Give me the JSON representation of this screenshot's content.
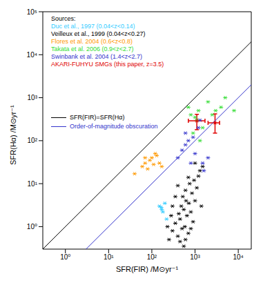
{
  "chart_data": {
    "type": "scatter",
    "log": true,
    "grid": false,
    "xlabel": "SFR(FIR) /M⊙yr⁻¹",
    "ylabel": "SFR(Hα) /M⊙yr⁻¹",
    "xlim": [
      0.3,
      20000
    ],
    "ylim": [
      0.3,
      100000
    ],
    "xticks": [
      {
        "value": 1,
        "label": "10⁰"
      },
      {
        "value": 10,
        "label": "10¹"
      },
      {
        "value": 100,
        "label": "10²"
      },
      {
        "value": 1000,
        "label": "10³"
      },
      {
        "value": 10000,
        "label": "10⁴"
      }
    ],
    "yticks": [
      {
        "value": 1,
        "label": "10⁰"
      },
      {
        "value": 10,
        "label": "10¹"
      },
      {
        "value": 100,
        "label": "10²"
      },
      {
        "value": 1000,
        "label": "10³"
      },
      {
        "value": 10000,
        "label": "10⁴"
      },
      {
        "value": 100000,
        "label": "10⁵"
      }
    ],
    "legend": "upper left",
    "legend_title": "Sources:",
    "series": [
      {
        "name": "Duc et al., 1997 (0.04<z<0.14)",
        "color": "#33ccff",
        "marker": "asterisk",
        "x": [
          150,
          170,
          180,
          200,
          220,
          165
        ],
        "y": [
          3,
          2.5,
          2.2,
          3.5,
          1.5,
          2.8
        ]
      },
      {
        "name": "Veilleux et al., 1999 (0.04<z<0.27)",
        "color": "#000000",
        "marker": "asterisk",
        "x": [
          250,
          300,
          350,
          400,
          420,
          450,
          480,
          500,
          520,
          550,
          580,
          600,
          620,
          650,
          700,
          720,
          750,
          800,
          850,
          900,
          950,
          1000,
          1100,
          1200,
          1300,
          1400,
          1500,
          300,
          350,
          400,
          450,
          600,
          800,
          280,
          230,
          700,
          1000,
          550
        ],
        "y": [
          0.5,
          0.8,
          1.2,
          0.6,
          2,
          1.5,
          3,
          0.9,
          5,
          2.5,
          1,
          7,
          4,
          1.8,
          0.7,
          3.5,
          10,
          2.2,
          6,
          1.3,
          12,
          4,
          8,
          15,
          20,
          3,
          25,
          3,
          5,
          9,
          0.45,
          0.5,
          0.9,
          1.8,
          1,
          14,
          30,
          0.35
        ]
      },
      {
        "name": "Flores et al. 2004 (0.6<z<0.8)",
        "color": "#ff9900",
        "marker": "asterisk",
        "x": [
          40,
          60,
          70,
          80,
          90,
          100,
          110,
          120,
          130,
          150,
          170,
          70
        ],
        "y": [
          17,
          25,
          30,
          22,
          35,
          40,
          28,
          50,
          45,
          30,
          25,
          40
        ]
      },
      {
        "name": "Takata et al. 2006 (0.9<z<2.7)",
        "color": "#33dd33",
        "marker": "asterisk",
        "x": [
          700,
          800,
          1000,
          1100,
          1200,
          1500,
          2000,
          3000,
          4000,
          8000,
          900,
          1300,
          2500,
          5000
        ],
        "y": [
          600,
          400,
          350,
          300,
          500,
          200,
          800,
          500,
          600,
          500,
          150,
          100,
          400,
          1000
        ]
      },
      {
        "name": "Swinbank et al. 2004 (1.4<z<2.7)",
        "color": "#3333cc",
        "marker": "asterisk",
        "x": [
          400,
          500,
          600,
          700,
          800,
          1000,
          1200,
          1500,
          1600,
          2000,
          600,
          900,
          1300
        ],
        "y": [
          40,
          60,
          80,
          100,
          30,
          50,
          200,
          30,
          20,
          40,
          150,
          120,
          300
        ]
      },
      {
        "name": "AKARI-FUHYU SMGs (this paper, z=3.5)",
        "color": "#e00000",
        "marker": "asterisk",
        "x": [
          1100,
          2900
        ],
        "y": [
          290,
          260
        ],
        "x_err": [
          [
            400,
            600
          ],
          [
            900,
            800
          ]
        ],
        "y_err": [
          [
            110,
            120
          ],
          [
            110,
            160
          ]
        ]
      }
    ],
    "lines": [
      {
        "name": "SFR(FIR)=SFR(Hα)",
        "color": "#000000",
        "line_style": "solid",
        "x": [
          0.3,
          20000
        ],
        "y": [
          0.3,
          20000
        ]
      },
      {
        "name": "Order-of-magnitude obscuration",
        "color": "#3333cc",
        "line_style": "solid",
        "x": [
          0.3,
          20000
        ],
        "y": [
          0.03,
          2000
        ]
      }
    ]
  }
}
